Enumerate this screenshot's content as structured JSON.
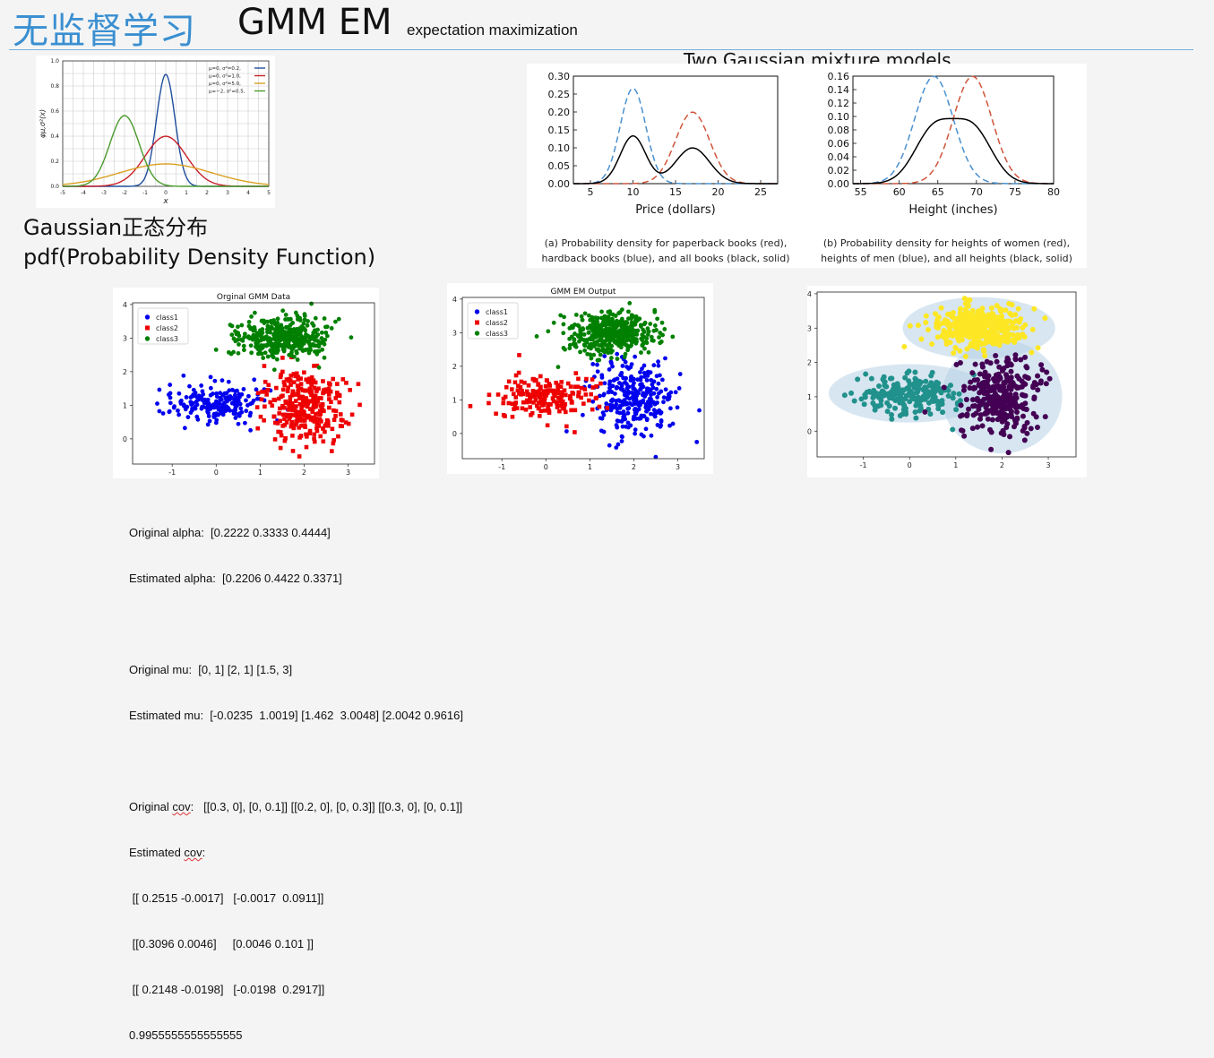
{
  "header": {
    "title_cn": "无监督学习",
    "title_en": "GMM EM",
    "subtitle": "expectation maximization"
  },
  "gaussian_caption": {
    "line1": "Gaussian正态分布",
    "line2": "pdf(Probability Density Function)"
  },
  "mixture_title": "Two Gaussian mixture models",
  "results": {
    "lines": [
      "Original alpha:  [0.2222 0.3333 0.4444]",
      "Estimated alpha:  [0.2206 0.4422 0.3371]",
      "",
      "Original mu:  [0, 1] [2, 1] [1.5, 3]",
      "Estimated mu:  [-0.0235  1.0019] [1.462  3.0048] [2.0042 0.9616]",
      "",
      "Original cov:   [[0.3, 0], [0, 0.1]] [[0.2, 0], [0, 0.3]] [[0.3, 0], [0, 0.1]]",
      "Estimated cov:",
      " [[ 0.2515 -0.0017]   [-0.0017  0.0911]]",
      " [[0.3096 0.0046]     [0.0046 0.101 ]]",
      " [[ 0.2148 -0.0198]   [-0.0198  0.2917]]",
      "0.9955555555555555"
    ]
  },
  "chart_data": [
    {
      "type": "line",
      "title": "",
      "xlabel": "x",
      "ylabel": "φμ,σ²(x)",
      "xlim": [
        -5,
        5
      ],
      "ylim": [
        0,
        1.0
      ],
      "x_ticks": [
        "-5",
        "-4",
        "-3",
        "-2",
        "-1",
        "0",
        "1",
        "2",
        "3",
        "4",
        "5"
      ],
      "y_ticks": [
        "0.0",
        "0.2",
        "0.4",
        "0.6",
        "0.8",
        "1.0"
      ],
      "legend_position": "top-right",
      "grid": true,
      "series": [
        {
          "name": "μ=0,   σ²=0.2,",
          "mu": 0,
          "var": 0.2,
          "color": "#1f4e9c"
        },
        {
          "name": "μ=0,   σ²=1.0,",
          "mu": 0,
          "var": 1.0,
          "color": "#c8202a"
        },
        {
          "name": "μ=0,   σ²=5.0,",
          "mu": 0,
          "var": 5.0,
          "color": "#d9a020"
        },
        {
          "name": "μ=−2,  σ²=0.5,",
          "mu": -2,
          "var": 0.5,
          "color": "#4a9b2e"
        }
      ]
    },
    {
      "type": "line",
      "title": "",
      "xlabel": "Price (dollars)",
      "ylabel": "",
      "xlim": [
        3,
        27
      ],
      "ylim": [
        0,
        0.3
      ],
      "x_ticks": [
        "5",
        "10",
        "15",
        "20",
        "25"
      ],
      "y_ticks": [
        "0.00",
        "0.05",
        "0.10",
        "0.15",
        "0.20",
        "0.25",
        "0.30"
      ],
      "caption": "(a) Probability density for paperback books (red), hardback books (blue), and all books (black, solid)",
      "caption_lines": [
        "(a) Probability density for paperback books (red),",
        "hardback books (blue), and all books (black, solid)"
      ],
      "series": [
        {
          "mu": 10,
          "sigma": 1.5,
          "scale": 1.0,
          "style": "dashed",
          "color": "#4a90d0"
        },
        {
          "mu": 17,
          "sigma": 2.0,
          "scale": 1.0,
          "style": "dashed",
          "color": "#d0553a"
        },
        {
          "components": [
            [
              10,
              1.5,
              0.5
            ],
            [
              17,
              2.0,
              0.5
            ]
          ],
          "style": "solid",
          "color": "#000000"
        }
      ]
    },
    {
      "type": "line",
      "title": "",
      "xlabel": "Height (inches)",
      "ylabel": "",
      "xlim": [
        54,
        80
      ],
      "ylim": [
        0,
        0.16
      ],
      "x_ticks": [
        "55",
        "60",
        "65",
        "70",
        "75",
        "80"
      ],
      "y_ticks": [
        "0.00",
        "0.02",
        "0.04",
        "0.06",
        "0.08",
        "0.10",
        "0.12",
        "0.14",
        "0.16"
      ],
      "caption": "(b) Probability density for heights of women (red), heights of men (blue), and all heights (black, solid)",
      "caption_lines": [
        "(b) Probability density for heights of women (red),",
        "heights of men (blue), and all heights (black, solid)"
      ],
      "series": [
        {
          "mu": 64.5,
          "sigma": 2.5,
          "scale": 1.0,
          "style": "dashed",
          "color": "#4a90d0"
        },
        {
          "mu": 69.5,
          "sigma": 2.5,
          "scale": 1.0,
          "style": "dashed",
          "color": "#d0553a"
        },
        {
          "components": [
            [
              64.5,
              2.5,
              0.5
            ],
            [
              69.5,
              2.5,
              0.5
            ]
          ],
          "style": "solid",
          "color": "#000000"
        }
      ]
    },
    {
      "type": "scatter",
      "title": "Orginal GMM Data",
      "xlim": [
        -1.9,
        3.6
      ],
      "ylim": [
        -0.75,
        4.05
      ],
      "x_ticks": [
        "-1",
        "0",
        "1",
        "2",
        "3"
      ],
      "y_ticks": [
        "0",
        "1",
        "2",
        "3",
        "4"
      ],
      "legend_position": "top-left",
      "series": [
        {
          "name": "class1",
          "marker": "circle",
          "color": "#0000ee",
          "mean": [
            0,
            1.1
          ],
          "std": [
            0.55,
            0.3
          ],
          "n": 200
        },
        {
          "name": "class2",
          "marker": "square",
          "color": "#ee0000",
          "mean": [
            2,
            1.0
          ],
          "std": [
            0.45,
            0.55
          ],
          "n": 300
        },
        {
          "name": "class3",
          "marker": "circle",
          "color": "#008000",
          "mean": [
            1.5,
            3.0
          ],
          "std": [
            0.5,
            0.3
          ],
          "n": 400
        }
      ]
    },
    {
      "type": "scatter",
      "title": "GMM EM Output",
      "xlim": [
        -1.9,
        3.6
      ],
      "ylim": [
        -0.75,
        4.05
      ],
      "x_ticks": [
        "-1",
        "0",
        "1",
        "2",
        "3"
      ],
      "y_ticks": [
        "0",
        "1",
        "2",
        "3",
        "4"
      ],
      "legend_position": "top-left",
      "series": [
        {
          "name": "class1",
          "marker": "circle",
          "color": "#0000ee",
          "mean": [
            2,
            1.0
          ],
          "std": [
            0.45,
            0.55
          ],
          "n": 300
        },
        {
          "name": "class2",
          "marker": "square",
          "color": "#ee0000",
          "mean": [
            0,
            1.1
          ],
          "std": [
            0.55,
            0.3
          ],
          "n": 200
        },
        {
          "name": "class3",
          "marker": "circle",
          "color": "#008000",
          "mean": [
            1.5,
            3.0
          ],
          "std": [
            0.5,
            0.3
          ],
          "n": 400
        }
      ]
    },
    {
      "type": "scatter",
      "title": "",
      "xlim": [
        -2.0,
        3.6
      ],
      "ylim": [
        -0.75,
        4.05
      ],
      "x_ticks": [
        "-1",
        "0",
        "1",
        "2",
        "3"
      ],
      "y_ticks": [
        "0",
        "1",
        "2",
        "3",
        "4"
      ],
      "series": [
        {
          "marker": "circle",
          "color": "#21918c",
          "mean": [
            0,
            1.1
          ],
          "std": [
            0.55,
            0.3
          ],
          "n": 200,
          "ellipse": [
            1.75,
            0.85
          ]
        },
        {
          "marker": "circle",
          "color": "#440154",
          "mean": [
            2,
            1.0
          ],
          "std": [
            0.45,
            0.55
          ],
          "n": 300,
          "ellipse": [
            1.3,
            1.65
          ]
        },
        {
          "marker": "circle",
          "color": "#fde725",
          "mean": [
            1.5,
            3.0
          ],
          "std": [
            0.5,
            0.3
          ],
          "n": 400,
          "ellipse": [
            1.65,
            0.9
          ]
        }
      ]
    }
  ]
}
